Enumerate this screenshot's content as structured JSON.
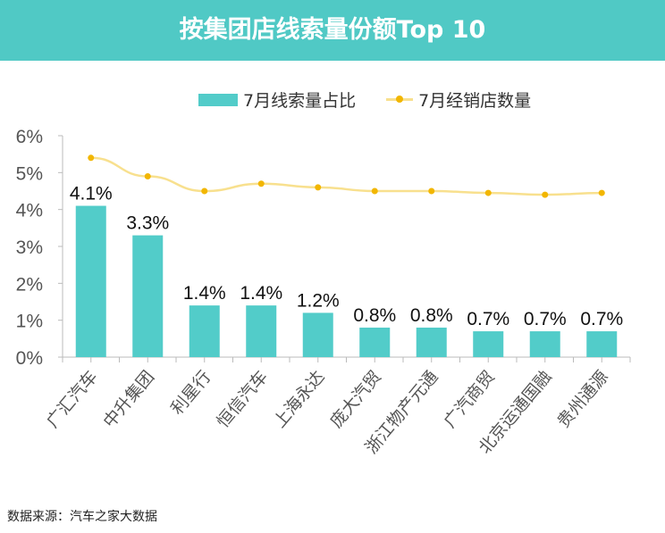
{
  "chart_data": {
    "type": "bar",
    "title": "按集团店线索量份额Top 10",
    "categories": [
      "广汇汽车",
      "中升集团",
      "利星行",
      "恒信汽车",
      "上海永达",
      "庞大汽贸",
      "浙江物产元通",
      "广汽商贸",
      "北京运通国融",
      "贵州通源"
    ],
    "series": [
      {
        "name": "7月线索量占比",
        "type": "bar",
        "values": [
          4.1,
          3.3,
          1.4,
          1.4,
          1.2,
          0.8,
          0.8,
          0.7,
          0.7,
          0.7
        ],
        "labels": [
          "4.1%",
          "3.3%",
          "1.4%",
          "1.4%",
          "1.2%",
          "0.8%",
          "0.8%",
          "0.7%",
          "0.7%",
          "0.7%"
        ],
        "color": "#52ccc9"
      },
      {
        "name": "7月经销店数量",
        "type": "line",
        "values": [
          5.4,
          4.9,
          4.5,
          4.7,
          4.6,
          4.5,
          4.5,
          4.45,
          4.4,
          4.45
        ],
        "color": "#f2b600",
        "line_color": "#f8e08e"
      }
    ],
    "yticks": [
      "0%",
      "1%",
      "2%",
      "3%",
      "4%",
      "5%",
      "6%"
    ],
    "ylim": [
      0,
      6
    ],
    "grid": false,
    "legend": "top"
  },
  "source": "数据来源：汽车之家大数据"
}
